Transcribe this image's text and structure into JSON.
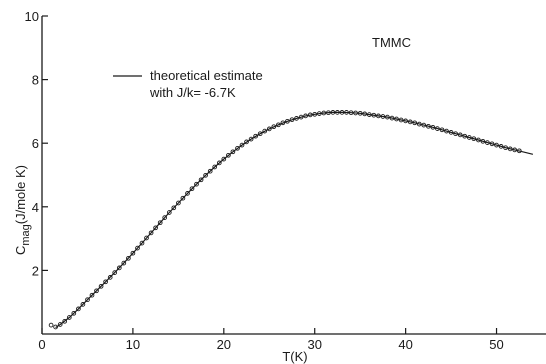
{
  "chart_data": {
    "type": "scatter",
    "title": "",
    "xlabel": "T(K)",
    "ylabel": "C",
    "ylabel_sub": "mag",
    "ylabel_unit": "(J/mole K)",
    "xlim": [
      0,
      54
    ],
    "ylim": [
      0,
      10
    ],
    "xticks": [
      "0",
      "10",
      "20",
      "30",
      "40",
      "50"
    ],
    "yticks": [
      "2",
      "4",
      "6",
      "8",
      "10"
    ],
    "grid": false,
    "annotation": "TMMC",
    "legend": {
      "placement": "top-left",
      "line1": "theoretical estimate",
      "line2": "with J/k= -6.7K"
    },
    "series": [
      {
        "kind": "points",
        "x": [
          1.0,
          1.5,
          2.0,
          2.5,
          3.0,
          3.5,
          4.0,
          4.5,
          5.0,
          5.5,
          6.0,
          6.5,
          7.0,
          7.5,
          8.0,
          8.5,
          9.0,
          9.5,
          10.0,
          10.5,
          11.0,
          11.5,
          12.0,
          12.5,
          13.0,
          13.5,
          14.0,
          14.5,
          15.0,
          15.5,
          16.0,
          16.5,
          17.0,
          17.5,
          18.0,
          18.5,
          19.0,
          19.5,
          20.0,
          20.5,
          21.0,
          21.5,
          22.0,
          22.5,
          23.0,
          23.5,
          24.0,
          24.5,
          25.0,
          25.5,
          26.0,
          26.5,
          27.0,
          27.5,
          28.0,
          28.5,
          29.0,
          29.5,
          30.0,
          30.5,
          31.0,
          31.5,
          32.0,
          32.5,
          33.0,
          33.5,
          34.0,
          34.5,
          35.0,
          35.5,
          36.0,
          36.5,
          37.0,
          37.5,
          38.0,
          38.5,
          39.0,
          39.5,
          40.0,
          40.5,
          41.0,
          41.5,
          42.0,
          42.5,
          43.0,
          43.5,
          44.0,
          44.5,
          45.0,
          45.5,
          46.0,
          46.5,
          47.0,
          47.5,
          48.0,
          48.5,
          49.0,
          49.5,
          50.0,
          50.5,
          51.0,
          51.5,
          52.0,
          52.5
        ],
        "y": [
          0.28,
          0.22,
          0.3,
          0.4,
          0.52,
          0.65,
          0.79,
          0.93,
          1.08,
          1.22,
          1.36,
          1.5,
          1.64,
          1.78,
          1.93,
          2.08,
          2.23,
          2.38,
          2.54,
          2.7,
          2.86,
          3.02,
          3.18,
          3.34,
          3.5,
          3.66,
          3.82,
          3.97,
          4.12,
          4.27,
          4.42,
          4.57,
          4.71,
          4.85,
          4.99,
          5.12,
          5.25,
          5.38,
          5.5,
          5.62,
          5.73,
          5.84,
          5.94,
          6.04,
          6.13,
          6.22,
          6.3,
          6.38,
          6.45,
          6.52,
          6.58,
          6.64,
          6.69,
          6.74,
          6.78,
          6.82,
          6.86,
          6.89,
          6.91,
          6.93,
          6.95,
          6.96,
          6.97,
          6.97,
          6.97,
          6.97,
          6.96,
          6.95,
          6.94,
          6.92,
          6.9,
          6.88,
          6.86,
          6.84,
          6.82,
          6.79,
          6.76,
          6.73,
          6.7,
          6.67,
          6.64,
          6.6,
          6.57,
          6.53,
          6.5,
          6.46,
          6.42,
          6.38,
          6.34,
          6.3,
          6.26,
          6.22,
          6.18,
          6.14,
          6.1,
          6.06,
          6.02,
          5.98,
          5.94,
          5.9,
          5.86,
          5.82,
          5.79,
          5.76
        ]
      },
      {
        "kind": "line",
        "x": [
          1.5,
          2,
          3,
          4,
          5,
          6,
          7,
          8,
          9,
          10,
          11,
          12,
          13,
          14,
          15,
          16,
          17,
          18,
          19,
          20,
          21,
          22,
          23,
          24,
          25,
          26,
          27,
          28,
          29,
          30,
          31,
          32,
          33,
          34,
          35,
          36,
          37,
          38,
          39,
          40,
          41,
          42,
          43,
          44,
          45,
          46,
          47,
          48,
          49,
          50,
          51,
          52,
          53,
          54
        ],
        "y": [
          0.2,
          0.3,
          0.52,
          0.79,
          1.08,
          1.36,
          1.64,
          1.93,
          2.23,
          2.54,
          2.86,
          3.18,
          3.5,
          3.82,
          4.12,
          4.42,
          4.71,
          4.99,
          5.25,
          5.5,
          5.73,
          5.94,
          6.13,
          6.3,
          6.45,
          6.58,
          6.69,
          6.78,
          6.86,
          6.91,
          6.95,
          6.97,
          6.97,
          6.96,
          6.94,
          6.9,
          6.86,
          6.82,
          6.76,
          6.7,
          6.64,
          6.57,
          6.5,
          6.42,
          6.34,
          6.26,
          6.18,
          6.1,
          6.02,
          5.94,
          5.86,
          5.79,
          5.72,
          5.65
        ]
      }
    ]
  }
}
